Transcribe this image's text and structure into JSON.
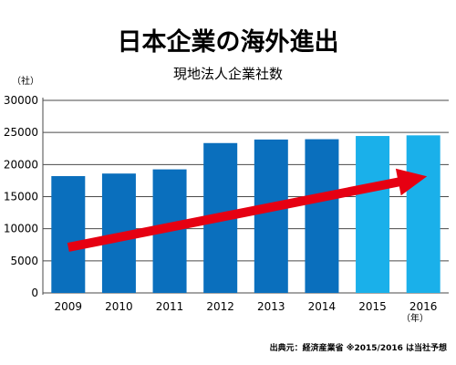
{
  "chart_data": {
    "type": "bar",
    "title": "日本企業の海外進出",
    "subtitle": "現地法人企業社数",
    "ylabel": "（社）",
    "xlabel": "（年）",
    "categories": [
      "2009",
      "2010",
      "2011",
      "2012",
      "2013",
      "2014",
      "2015",
      "2016"
    ],
    "values": [
      18200,
      18600,
      19250,
      23350,
      23900,
      23950,
      24450,
      24550
    ],
    "forecast": [
      false,
      false,
      false,
      false,
      false,
      false,
      true,
      true
    ],
    "ylim": [
      0,
      30000
    ],
    "yticks": [
      "0",
      "5000",
      "10000",
      "15000",
      "20000",
      "25000",
      "30000"
    ],
    "grid": true,
    "colors": {
      "actual": "#0a6fbd",
      "forecast": "#1ab0ea",
      "arrow": "#e60012",
      "grid": "#4a4a4a"
    },
    "source_note": "出典元：経済産業省 ※2015/2016 は当社予想"
  }
}
